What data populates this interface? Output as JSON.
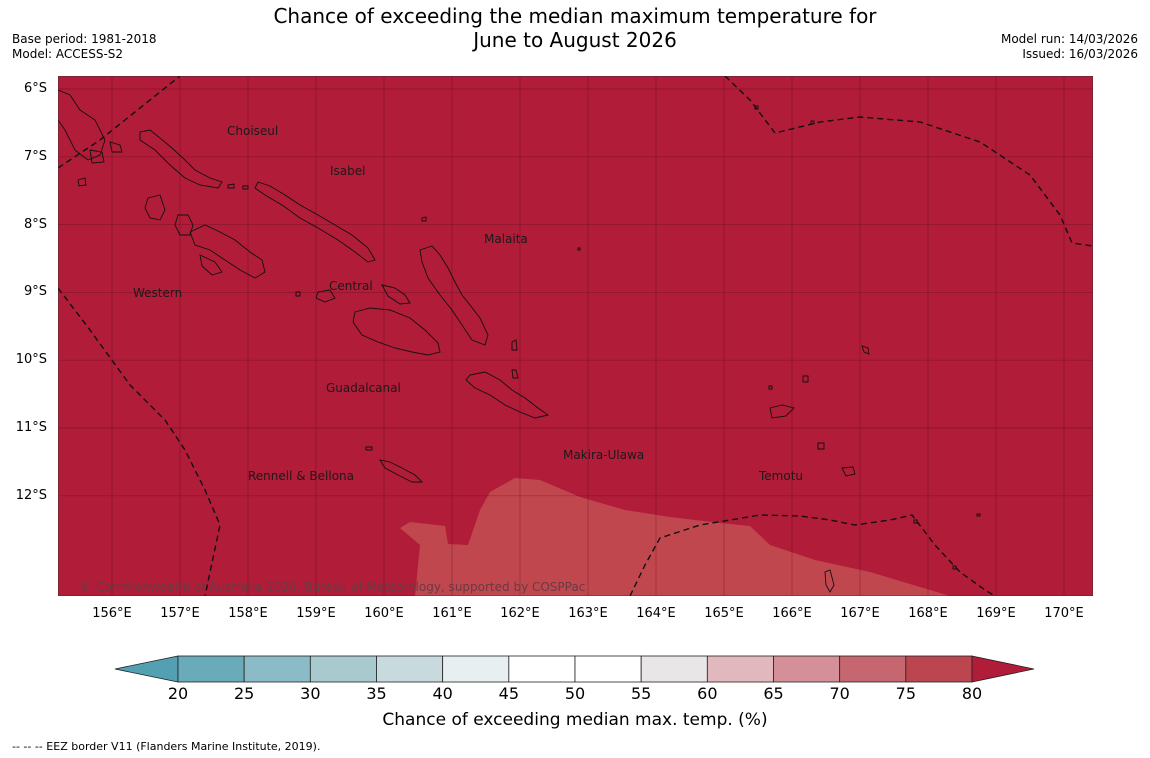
{
  "header": {
    "title_line1": "Chance of exceeding the median maximum temperature for",
    "title_line2": "June to August 2026",
    "base_period": "Base period: 1981-2018",
    "model": "Model: ACCESS-S2",
    "model_run": "Model run: 14/03/2026",
    "issued": "Issued: 16/03/2026"
  },
  "map": {
    "lat_labels": [
      "6°S",
      "7°S",
      "8°S",
      "9°S",
      "10°S",
      "11°S",
      "12°S"
    ],
    "lon_labels": [
      "156°E",
      "157°E",
      "158°E",
      "159°E",
      "160°E",
      "161°E",
      "162°E",
      "163°E",
      "164°E",
      "165°E",
      "166°E",
      "167°E",
      "168°E",
      "169°E",
      "170°E"
    ],
    "regions": [
      "Choiseul",
      "Isabel",
      "Malaita",
      "Western",
      "Central",
      "Guadalcanal",
      "Makira-Ulawa",
      "Rennell & Bellona",
      "Temotu"
    ],
    "fill_main_color": "#b11c39",
    "fill_secondary_color": "#c1474f",
    "copyright": "© Commonwealth of Australia 2026, Bureau of Meteorology, supported by COSPPac"
  },
  "colorbar": {
    "ticks": [
      "20",
      "25",
      "30",
      "35",
      "40",
      "45",
      "50",
      "55",
      "60",
      "65",
      "70",
      "75",
      "80"
    ],
    "colors": [
      "#6aabba",
      "#8bbbc6",
      "#a8cace",
      "#c8dade",
      "#e8eff0",
      "#ffffff",
      "#ffffff",
      "#e8e6e7",
      "#e2b8bf",
      "#d48f98",
      "#c66670",
      "#bb4650"
    ],
    "low_extension_color": "#53a0b2",
    "high_extension_color": "#b11c39",
    "label": "Chance of exceeding median max. temp. (%)"
  },
  "footer": {
    "legend": "--  --  -- EEZ border V11 (Flanders Marine Institute, 2019)."
  }
}
